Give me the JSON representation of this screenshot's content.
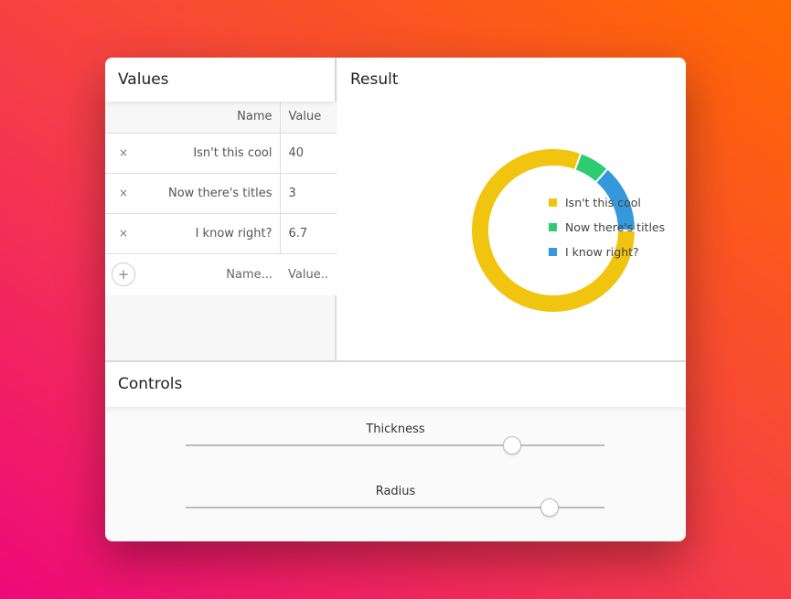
{
  "values_panel": {
    "title": "Values",
    "headers": {
      "name": "Name",
      "value": "Value"
    },
    "rows": [
      {
        "name": "Isn't this cool",
        "value": "40",
        "remove": "×"
      },
      {
        "name": "Now there's titles",
        "value": "3",
        "remove": "×"
      },
      {
        "name": "I know right?",
        "value": "6.7",
        "remove": "×"
      }
    ],
    "add": {
      "icon": "+",
      "name_placeholder": "Name...",
      "value_placeholder": "Value.."
    }
  },
  "result_panel": {
    "title": "Result"
  },
  "chart_data": {
    "type": "pie",
    "variant": "donut",
    "start": "3 o'clock, clockwise",
    "categories": [
      "Isn't this cool",
      "Now there's titles",
      "I know right?"
    ],
    "values": [
      40,
      3,
      6.7
    ],
    "colors": [
      "#f1c40f",
      "#2ecc71",
      "#3498db"
    ],
    "legend": "right"
  },
  "controls": {
    "title": "Controls",
    "sliders": [
      {
        "label": "Thickness",
        "level": 0.78
      },
      {
        "label": "Radius",
        "level": 0.87
      }
    ]
  }
}
